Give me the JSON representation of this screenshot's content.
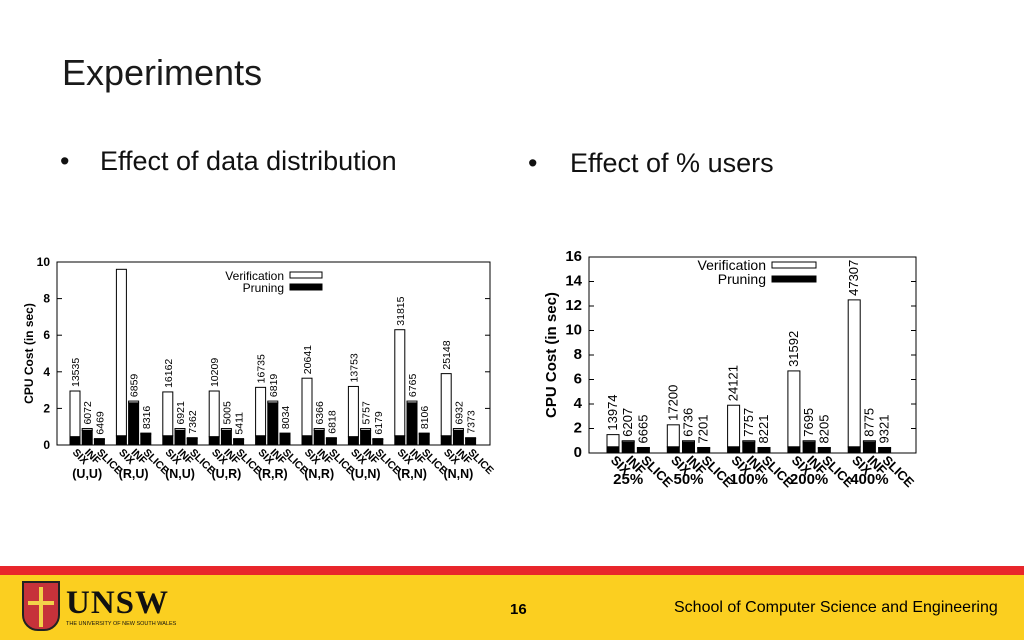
{
  "slide": {
    "title": "Experiments",
    "bullets": [
      "Effect of data distribution",
      "Effect of % users"
    ],
    "bullet_char": "•"
  },
  "footer": {
    "page_number": "16",
    "school": "School of Computer Science and Engineering",
    "logo_text": "UNSW",
    "logo_subtext": "THE UNIVERSITY OF NEW SOUTH WALES",
    "colors": {
      "bar": "#fbcf20",
      "stripe": "#e8262b"
    }
  },
  "chart_data": [
    {
      "type": "bar",
      "stacked": true,
      "ylabel": "CPU Cost (in sec)",
      "ylim": [
        0,
        10
      ],
      "yticks": [
        0,
        2,
        4,
        6,
        8,
        10
      ],
      "groups": [
        "(U,U)",
        "(R,U)",
        "(N,U)",
        "(U,R)",
        "(R,R)",
        "(N,R)",
        "(U,N)",
        "(R,N)",
        "(N,N)"
      ],
      "methods": [
        "SIX",
        "INF",
        "SLICE"
      ],
      "legend": [
        "Verification",
        "Pruning"
      ],
      "legend_position": "top-right",
      "series": [
        {
          "name": "Pruning",
          "values": [
            [
              0.45,
              0.8,
              0.3
            ],
            [
              0.5,
              2.3,
              0.6
            ],
            [
              0.5,
              0.8,
              0.35
            ],
            [
              0.45,
              0.8,
              0.3
            ],
            [
              0.5,
              2.3,
              0.6
            ],
            [
              0.5,
              0.8,
              0.35
            ],
            [
              0.45,
              0.8,
              0.3
            ],
            [
              0.5,
              2.3,
              0.6
            ],
            [
              0.5,
              0.8,
              0.35
            ]
          ]
        },
        {
          "name": "Verification",
          "values": [
            [
              2.5,
              0.1,
              0.05
            ],
            [
              9.1,
              0.1,
              0.05
            ],
            [
              2.4,
              0.1,
              0.05
            ],
            [
              2.5,
              0.1,
              0.05
            ],
            [
              2.65,
              0.1,
              0.05
            ],
            [
              3.15,
              0.1,
              0.05
            ],
            [
              2.75,
              0.1,
              0.05
            ],
            [
              5.8,
              0.1,
              0.05
            ],
            [
              3.4,
              0.1,
              0.05
            ]
          ]
        }
      ],
      "bar_labels": [
        [
          "13535",
          "6072",
          "6469"
        ],
        [
          "",
          "6859",
          "8316"
        ],
        [
          "16162",
          "6921",
          "7362"
        ],
        [
          "10209",
          "5005",
          "5411"
        ],
        [
          "16735",
          "6819",
          "8034"
        ],
        [
          "20641",
          "6366",
          "6818"
        ],
        [
          "13753",
          "5757",
          "6179"
        ],
        [
          "31815",
          "6765",
          "8106"
        ],
        [
          "25148",
          "6932",
          "7373"
        ]
      ]
    },
    {
      "type": "bar",
      "stacked": true,
      "ylabel": "CPU Cost (in sec)",
      "ylim": [
        0,
        16
      ],
      "yticks": [
        0,
        2,
        4,
        6,
        8,
        10,
        12,
        14,
        16
      ],
      "groups": [
        "25%",
        "50%",
        "100%",
        "200%",
        "400%"
      ],
      "methods": [
        "SIX",
        "INF",
        "SLICE"
      ],
      "legend": [
        "Verification",
        "Pruning"
      ],
      "legend_position": "top-left",
      "series": [
        {
          "name": "Pruning",
          "values": [
            [
              0.5,
              0.9,
              0.4
            ],
            [
              0.5,
              0.9,
              0.4
            ],
            [
              0.5,
              0.9,
              0.4
            ],
            [
              0.5,
              0.9,
              0.4
            ],
            [
              0.5,
              0.9,
              0.4
            ]
          ]
        },
        {
          "name": "Verification",
          "values": [
            [
              1.0,
              0.1,
              0.05
            ],
            [
              1.8,
              0.1,
              0.05
            ],
            [
              3.4,
              0.1,
              0.05
            ],
            [
              6.2,
              0.1,
              0.05
            ],
            [
              12.0,
              0.1,
              0.05
            ]
          ]
        }
      ],
      "bar_labels": [
        [
          "13974",
          "6207",
          "6665"
        ],
        [
          "17200",
          "6736",
          "7201"
        ],
        [
          "24121",
          "7757",
          "8221"
        ],
        [
          "31592",
          "7695",
          "8205"
        ],
        [
          "47307",
          "8775",
          "9321"
        ]
      ]
    }
  ]
}
